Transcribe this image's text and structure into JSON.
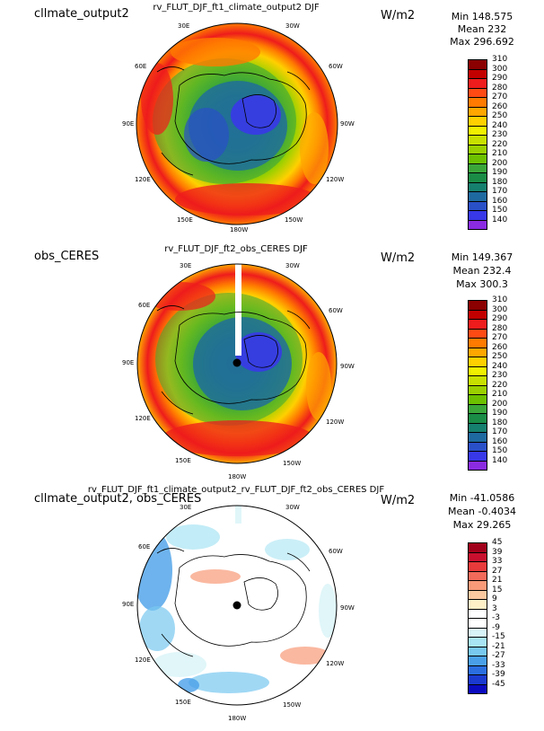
{
  "panels": [
    {
      "id": "p1",
      "left_title": "cllmate_output2",
      "center_title": "rv_FLUT_DJF_ft1_climate_output2  DJF",
      "units": "W/m2",
      "stats": {
        "min": "Min  148.575",
        "mean": "Mean 232",
        "max": "Max 296.692"
      },
      "lon_labels": [
        "30E",
        "30W",
        "60E",
        "60W",
        "90E",
        "90W",
        "120E",
        "120W",
        "150E",
        "150W",
        "180W"
      ],
      "colorbar": {
        "labels": [
          "310",
          "300",
          "290",
          "280",
          "270",
          "260",
          "250",
          "240",
          "230",
          "220",
          "210",
          "200",
          "190",
          "180",
          "170",
          "160",
          "150",
          "140"
        ],
        "colors": [
          "#8b0000",
          "#c30000",
          "#ee1c1c",
          "#ff4a14",
          "#ff7a00",
          "#ffa600",
          "#ffd000",
          "#f0f000",
          "#c8e000",
          "#9ad000",
          "#6cc000",
          "#3aa63a",
          "#1a8c46",
          "#16806e",
          "#1e6aa0",
          "#2a50c8",
          "#3838e8",
          "#8a2be2"
        ]
      }
    },
    {
      "id": "p2",
      "left_title": "obs_CERES",
      "center_title": "rv_FLUT_DJF_ft2_obs_CERES  DJF",
      "units": "W/m2",
      "stats": {
        "min": "Min  149.367",
        "mean": "Mean 232.4",
        "max": "Max 300.3"
      },
      "lon_labels": [
        "30E",
        "30W",
        "60E",
        "60W",
        "90E",
        "90W",
        "120E",
        "120W",
        "150E",
        "150W",
        "180W"
      ],
      "colorbar": {
        "labels": [
          "310",
          "300",
          "290",
          "280",
          "270",
          "260",
          "250",
          "240",
          "230",
          "220",
          "210",
          "200",
          "190",
          "180",
          "170",
          "160",
          "150",
          "140"
        ],
        "colors": [
          "#8b0000",
          "#c30000",
          "#ee1c1c",
          "#ff4a14",
          "#ff7a00",
          "#ffa600",
          "#ffd000",
          "#f0f000",
          "#c8e000",
          "#9ad000",
          "#6cc000",
          "#3aa63a",
          "#1a8c46",
          "#16806e",
          "#1e6aa0",
          "#2a50c8",
          "#3838e8",
          "#8a2be2"
        ]
      }
    },
    {
      "id": "p3",
      "left_title": "cllmate_output2, obs_CERES",
      "center_title": "rv_FLUT_DJF_ft1_climate_output2_rv_FLUT_DJF_ft2_obs_CERES  DJF",
      "units": "W/m2",
      "stats": {
        "min": "Min -41.0586",
        "mean": "Mean -0.4034",
        "max": "Max 29.265"
      },
      "lon_labels": [
        "30E",
        "30W",
        "60E",
        "60W",
        "90E",
        "90W",
        "120E",
        "120W",
        "150E",
        "150W",
        "180W"
      ],
      "colorbar": {
        "labels": [
          "45",
          "39",
          "33",
          "27",
          "21",
          "15",
          "9",
          "3",
          "-3",
          "-9",
          "-15",
          "-21",
          "-27",
          "-33",
          "-39",
          "-45"
        ],
        "colors": [
          "#a0001a",
          "#c8102e",
          "#e83a3a",
          "#f26a5a",
          "#f89a78",
          "#fcc8a0",
          "#fff0c8",
          "#ffffff",
          "#ffffff",
          "#d8f4f8",
          "#a8e4f4",
          "#78c8f0",
          "#4aa0e8",
          "#2a6ee0",
          "#1a3ad0",
          "#0a0ac0"
        ]
      }
    }
  ],
  "chart_data": [
    {
      "type": "heatmap",
      "projection": "polar stereographic, North Pole centered",
      "title": "rv_FLUT_DJF_ft1_climate_output2  DJF",
      "left_title": "cllmate_output2",
      "units": "W/m2",
      "min": 148.575,
      "mean": 232,
      "max": 296.692,
      "levels": [
        140,
        150,
        160,
        170,
        180,
        190,
        200,
        210,
        220,
        230,
        240,
        250,
        260,
        270,
        280,
        290,
        300,
        310
      ],
      "longitude_labels": [
        "30E",
        "30W",
        "60E",
        "60W",
        "90E",
        "90W",
        "120E",
        "120W",
        "150E",
        "150W",
        "180W"
      ],
      "field_description": "lowest (~150-170) over Greenland / central Arctic, rising to ~200 in interior, ~280-300 band near domain edge"
    },
    {
      "type": "heatmap",
      "projection": "polar stereographic, North Pole centered",
      "title": "rv_FLUT_DJF_ft2_obs_CERES  DJF",
      "left_title": "obs_CERES",
      "units": "W/m2",
      "min": 149.367,
      "mean": 232.4,
      "max": 300.3,
      "levels": [
        140,
        150,
        160,
        170,
        180,
        190,
        200,
        210,
        220,
        230,
        240,
        250,
        260,
        270,
        280,
        290,
        300,
        310
      ],
      "longitude_labels": [
        "30E",
        "30W",
        "60E",
        "60W",
        "90E",
        "90W",
        "120E",
        "120W",
        "150E",
        "150W",
        "180W"
      ],
      "field_description": "similar pattern to model; white missing strip along 30E/30W meridian line near top"
    },
    {
      "type": "heatmap",
      "projection": "polar stereographic, North Pole centered",
      "title": "rv_FLUT_DJF_ft1_climate_output2_rv_FLUT_DJF_ft2_obs_CERES  DJF",
      "left_title": "cllmate_output2, obs_CERES",
      "units": "W/m2",
      "min": -41.0586,
      "mean": -0.4034,
      "max": 29.265,
      "levels": [
        -45,
        -39,
        -33,
        -27,
        -21,
        -15,
        -9,
        -3,
        3,
        9,
        15,
        21,
        27,
        33,
        39,
        45
      ],
      "longitude_labels": [
        "30E",
        "30W",
        "60E",
        "60W",
        "90E",
        "90W",
        "120E",
        "120W",
        "150E",
        "150W",
        "180W"
      ],
      "field_description": "mostly near zero (white); negative blue patches at edges, small positive orange patches"
    }
  ]
}
